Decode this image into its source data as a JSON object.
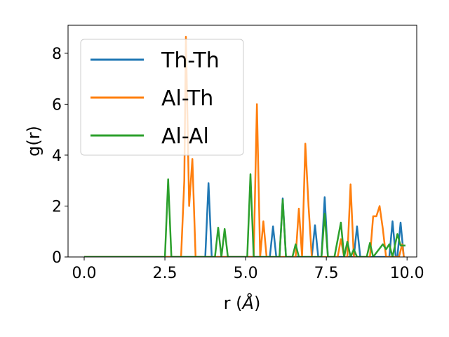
{
  "chart_data": {
    "type": "line",
    "xlabel": "r (",
    "xlabel_unit": "Å",
    "xlabel_close": ")",
    "ylabel": "g(r)",
    "xlim": [
      -0.5,
      10.3
    ],
    "ylim": [
      0,
      9.1
    ],
    "xticks": [
      0.0,
      2.5,
      5.0,
      7.5,
      10.0
    ],
    "xtick_labels": [
      "0.0",
      "2.5",
      "5.0",
      "7.5",
      "10.0"
    ],
    "yticks": [
      0,
      2,
      4,
      6,
      8
    ],
    "ytick_labels": [
      "0",
      "2",
      "4",
      "6",
      "8"
    ],
    "grid": false,
    "legend_position": "top-left",
    "series": [
      {
        "name": "Th-Th",
        "color": "#1f77b4",
        "points": [
          [
            0.0,
            0
          ],
          [
            3.75,
            0
          ],
          [
            3.85,
            2.9
          ],
          [
            3.95,
            0
          ],
          [
            5.75,
            0
          ],
          [
            5.85,
            1.2
          ],
          [
            5.95,
            0
          ],
          [
            6.05,
            0
          ],
          [
            6.15,
            2.3
          ],
          [
            6.25,
            0
          ],
          [
            7.05,
            0
          ],
          [
            7.15,
            1.25
          ],
          [
            7.25,
            0
          ],
          [
            7.35,
            0
          ],
          [
            7.45,
            2.35
          ],
          [
            7.55,
            0
          ],
          [
            8.35,
            0
          ],
          [
            8.45,
            1.2
          ],
          [
            8.55,
            0
          ],
          [
            9.45,
            0
          ],
          [
            9.55,
            1.4
          ],
          [
            9.65,
            0
          ],
          [
            9.7,
            0
          ],
          [
            9.8,
            1.35
          ],
          [
            9.9,
            0
          ]
        ]
      },
      {
        "name": "Al-Th",
        "color": "#ff7f0e",
        "points": [
          [
            0.0,
            0
          ],
          [
            3.0,
            0
          ],
          [
            3.1,
            3.0
          ],
          [
            3.15,
            8.65
          ],
          [
            3.25,
            2.0
          ],
          [
            3.35,
            3.85
          ],
          [
            3.45,
            0
          ],
          [
            5.25,
            0
          ],
          [
            5.35,
            6.0
          ],
          [
            5.45,
            0
          ],
          [
            5.55,
            1.4
          ],
          [
            5.65,
            0
          ],
          [
            6.55,
            0
          ],
          [
            6.65,
            1.9
          ],
          [
            6.75,
            0
          ],
          [
            6.85,
            4.45
          ],
          [
            6.95,
            2.0
          ],
          [
            7.05,
            0
          ],
          [
            7.85,
            0
          ],
          [
            7.95,
            0.7
          ],
          [
            8.05,
            0
          ],
          [
            8.15,
            0
          ],
          [
            8.25,
            2.85
          ],
          [
            8.35,
            0
          ],
          [
            8.85,
            0
          ],
          [
            8.95,
            1.6
          ],
          [
            9.05,
            1.6
          ],
          [
            9.15,
            2.0
          ],
          [
            9.25,
            1.1
          ],
          [
            9.35,
            0
          ],
          [
            9.75,
            0
          ],
          [
            9.85,
            0.5
          ],
          [
            9.9,
            0
          ]
        ]
      },
      {
        "name": "Al-Al",
        "color": "#2ca02c",
        "points": [
          [
            0.0,
            0
          ],
          [
            2.5,
            0
          ],
          [
            2.6,
            3.05
          ],
          [
            2.7,
            0
          ],
          [
            4.05,
            0
          ],
          [
            4.15,
            1.15
          ],
          [
            4.25,
            0
          ],
          [
            4.35,
            1.1
          ],
          [
            4.45,
            0
          ],
          [
            5.05,
            0
          ],
          [
            5.15,
            3.25
          ],
          [
            5.25,
            0
          ],
          [
            6.05,
            0
          ],
          [
            6.15,
            2.25
          ],
          [
            6.25,
            0
          ],
          [
            6.45,
            0
          ],
          [
            6.55,
            0.5
          ],
          [
            6.65,
            0
          ],
          [
            7.35,
            0
          ],
          [
            7.45,
            1.7
          ],
          [
            7.55,
            0
          ],
          [
            7.75,
            0
          ],
          [
            7.95,
            1.35
          ],
          [
            8.05,
            0
          ],
          [
            8.15,
            0.6
          ],
          [
            8.25,
            0
          ],
          [
            8.35,
            0.3
          ],
          [
            8.45,
            0
          ],
          [
            8.75,
            0
          ],
          [
            8.85,
            0.55
          ],
          [
            8.95,
            0
          ],
          [
            9.25,
            0.5
          ],
          [
            9.35,
            0.3
          ],
          [
            9.45,
            0.5
          ],
          [
            9.55,
            0
          ],
          [
            9.7,
            0.9
          ],
          [
            9.8,
            0.45
          ],
          [
            9.95,
            0.45
          ]
        ]
      }
    ]
  }
}
